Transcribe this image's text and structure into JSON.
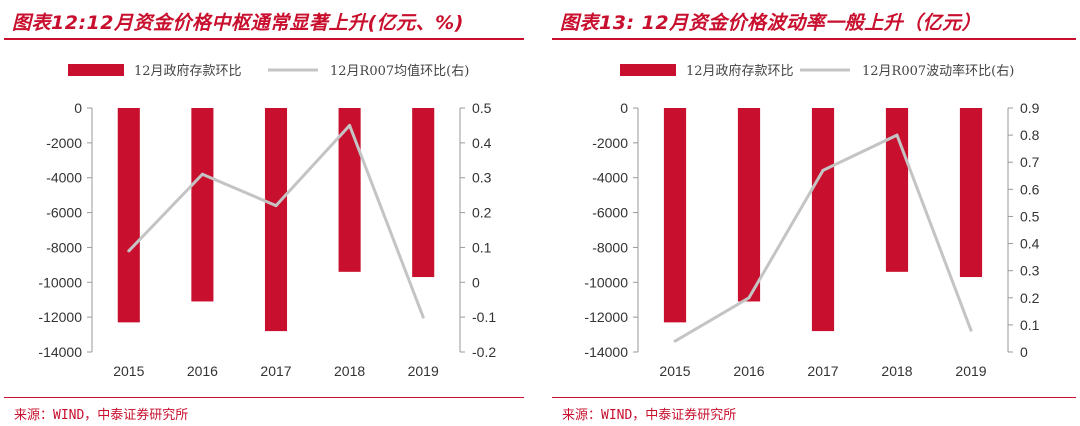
{
  "panels": [
    {
      "title": "图表12:12月资金价格中枢通常显著上升(亿元、%)",
      "source": "来源：WIND，中泰证券研究所"
    },
    {
      "title": "图表13: 12月资金价格波动率一般上升（亿元）",
      "source": "来源：WIND，中泰证券研究所"
    }
  ],
  "colors": {
    "bar": "#c8102e",
    "line": "#c4c4c4",
    "accent": "#c8102e",
    "axis": "#999999"
  },
  "chart_data": [
    {
      "type": "bar",
      "categories": [
        "2015",
        "2016",
        "2017",
        "2018",
        "2019"
      ],
      "series": [
        {
          "name": "12月政府存款环比",
          "type": "bar",
          "axis": "left",
          "values": [
            -12300,
            -11100,
            -12800,
            -9400,
            -9700
          ]
        },
        {
          "name": "12月R007均值环比(右)",
          "type": "line",
          "axis": "right",
          "values": [
            0.09,
            0.31,
            0.22,
            0.45,
            -0.1
          ]
        }
      ],
      "ylim_left": [
        -14000,
        0
      ],
      "yticks_left": [
        "0",
        "-2000",
        "-4000",
        "-6000",
        "-8000",
        "-10000",
        "-12000",
        "-14000"
      ],
      "ylim_right": [
        -0.2,
        0.5
      ],
      "yticks_right": [
        "0.5",
        "0.4",
        "0.3",
        "0.2",
        "0.1",
        "0",
        "-0.1",
        "-0.2"
      ],
      "legend": "top",
      "grid": false
    },
    {
      "type": "bar",
      "categories": [
        "2015",
        "2016",
        "2017",
        "2018",
        "2019"
      ],
      "series": [
        {
          "name": "12月政府存款环比",
          "type": "bar",
          "axis": "left",
          "values": [
            -12300,
            -11100,
            -12800,
            -9400,
            -9700
          ]
        },
        {
          "name": "12月R007波动率环比(右)",
          "type": "line",
          "axis": "right",
          "values": [
            0.04,
            0.2,
            0.67,
            0.8,
            0.08
          ]
        }
      ],
      "ylim_left": [
        -14000,
        0
      ],
      "yticks_left": [
        "0",
        "-2000",
        "-4000",
        "-6000",
        "-8000",
        "-10000",
        "-12000",
        "-14000"
      ],
      "ylim_right": [
        0,
        0.9
      ],
      "yticks_right": [
        "0.9",
        "0.8",
        "0.7",
        "0.6",
        "0.5",
        "0.4",
        "0.3",
        "0.2",
        "0.1",
        "0"
      ],
      "legend": "top",
      "grid": false
    }
  ]
}
